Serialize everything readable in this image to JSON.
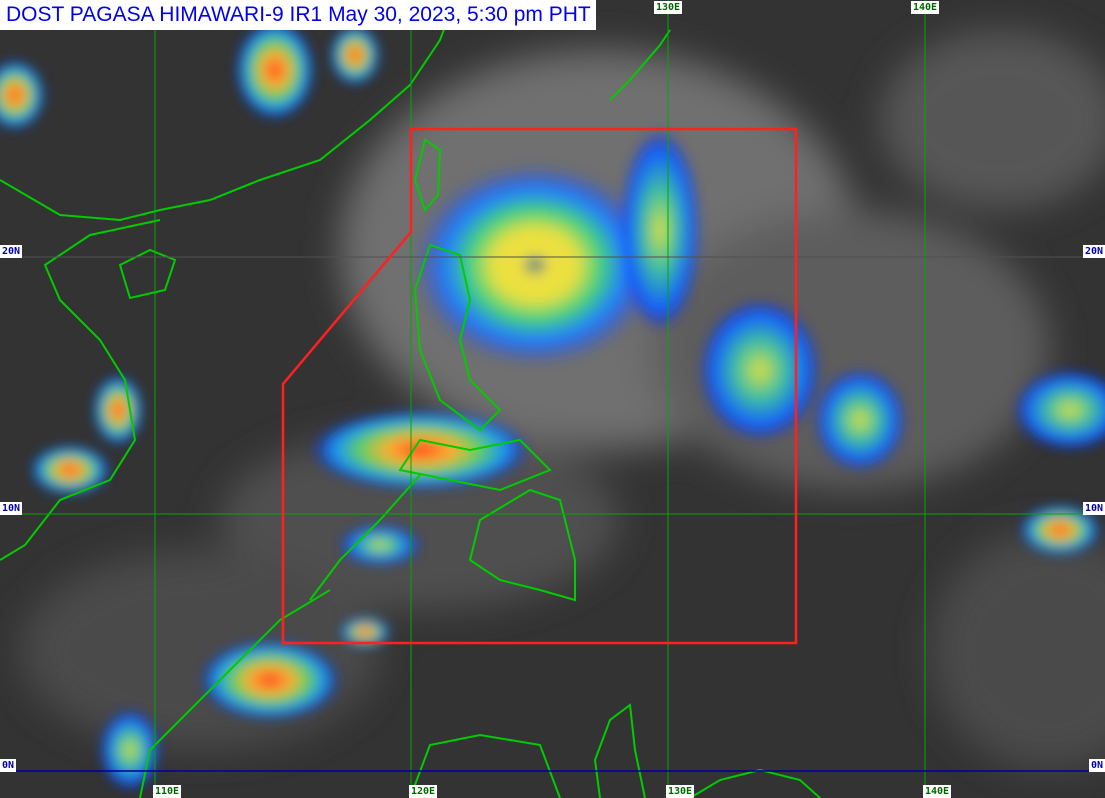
{
  "title": "DOST PAGASA HIMAWARI-9 IR1 May 30, 2023, 5:30 pm PHT",
  "grid": {
    "longitudes_top": [
      "130E",
      "140E"
    ],
    "longitudes_bottom": [
      "110E",
      "120E",
      "130E",
      "140E"
    ],
    "latitudes_left": [
      "20N",
      "10N",
      "0N"
    ],
    "latitudes_right": [
      "20N",
      "10N",
      "0N"
    ]
  },
  "colors": {
    "background_cloud": "#3a3a3a",
    "coastline": "#00cc00",
    "grid_lon": "#00aa00",
    "equator": "#000099",
    "par_boundary": "#ff2020",
    "title_text": "#0000ee"
  }
}
